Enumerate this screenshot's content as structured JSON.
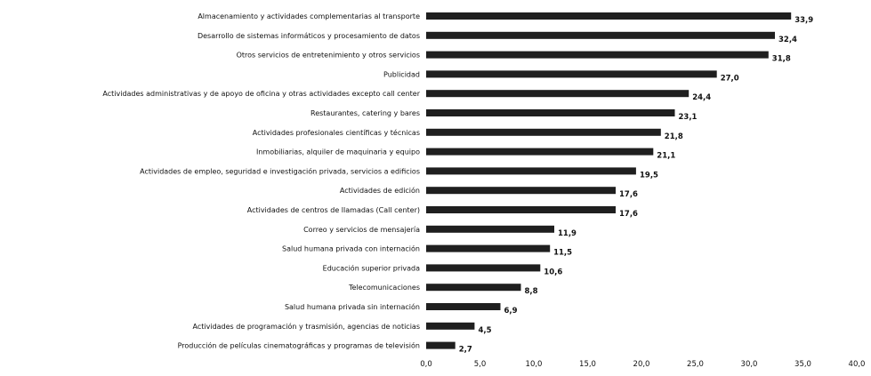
{
  "chart_data": {
    "type": "bar",
    "orientation": "horizontal",
    "title": "",
    "xlabel": "",
    "ylabel": "",
    "xlim": [
      0,
      40
    ],
    "x_ticks": [
      "0,0",
      "5,0",
      "10,0",
      "15,0",
      "20,0",
      "25,0",
      "30,0",
      "35,0",
      "40,0"
    ],
    "grid": false,
    "bar_color": "#1f1f1f",
    "categories": [
      "Almacenamiento y actividades complementarias al transporte",
      "Desarrollo de sistemas informáticos y procesamiento de datos",
      "Otros servicios de entretenimiento y otros servicios",
      "Publicidad",
      "Actividades administrativas y de apoyo de oficina y otras actividades excepto call center",
      "Restaurantes, catering y bares",
      "Actividades profesionales científicas y técnicas",
      "Inmobiliarias, alquiler de maquinaria y equipo",
      "Actividades de empleo, seguridad e investigación privada, servicios a edificios",
      "Actividades de edición",
      "Actividades de centros de llamadas (Call center)",
      "Correo y servicios de mensajería",
      "Salud humana privada con internación",
      "Educación superior privada",
      "Telecomunicaciones",
      "Salud humana privada sin internación",
      "Actividades de programación y trasmisión, agencias de noticias",
      "Producción de películas cinematográficas y programas de televisión"
    ],
    "values": [
      33.9,
      32.4,
      31.8,
      27.0,
      24.4,
      23.1,
      21.8,
      21.1,
      19.5,
      17.6,
      17.6,
      11.9,
      11.5,
      10.6,
      8.8,
      6.9,
      4.5,
      2.7
    ],
    "value_labels": [
      "33,9",
      "32,4",
      "31,8",
      "27,0",
      "24,4",
      "23,1",
      "21,8",
      "21,1",
      "19,5",
      "17,6",
      "17,6",
      "11,9",
      "11,5",
      "10,6",
      "8,8",
      "6,9",
      "4,5",
      "2,7"
    ]
  }
}
